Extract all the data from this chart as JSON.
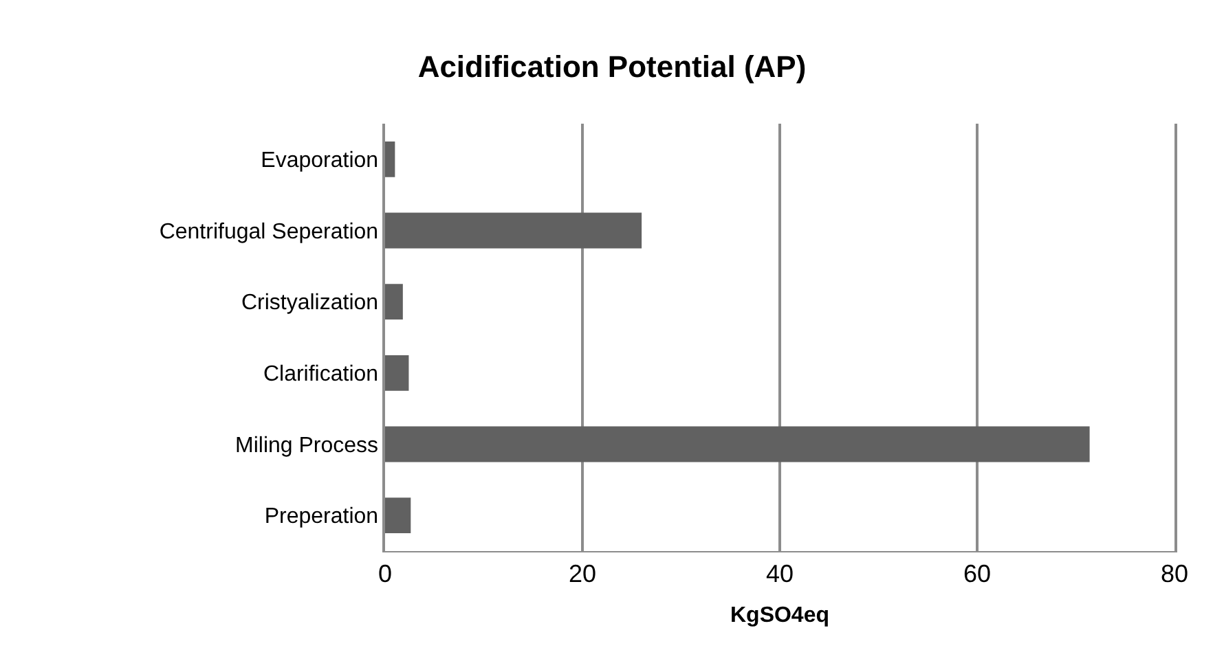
{
  "chart_data": {
    "type": "bar",
    "orientation": "horizontal",
    "title": "Acidification Potential (AP)",
    "xlabel": "KgSO4eq",
    "categories": [
      "Evaporation",
      "Centrifugal Seperation",
      "Cristyalization",
      "Clarification",
      "Miling Process",
      "Preperation"
    ],
    "values": [
      1.0,
      26.0,
      1.8,
      2.4,
      71.4,
      2.6
    ],
    "color": "#616161",
    "xlim": [
      0,
      80
    ],
    "xticks": [
      0,
      20,
      40,
      60,
      80
    ],
    "grid": "x"
  }
}
